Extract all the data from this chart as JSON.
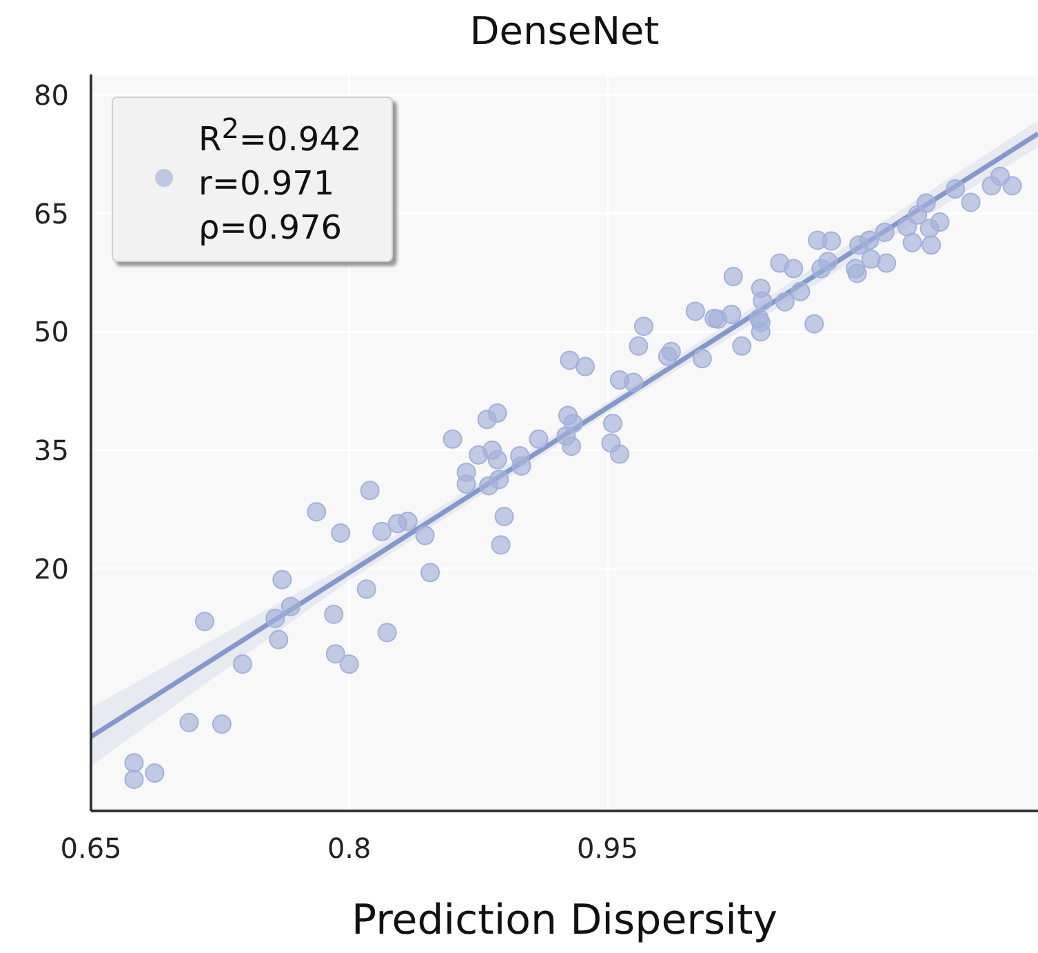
{
  "chart_data": {
    "type": "scatter",
    "title": "DenseNet",
    "xlabel": "Prediction Dispersity",
    "xlim": [
      0.65,
      1.2
    ],
    "xticks": [
      0.65,
      0.8,
      0.95
    ],
    "ylim": [
      -10.7,
      82.6
    ],
    "yticks": [
      20,
      35,
      50,
      65,
      80
    ],
    "grid": true,
    "legend": "top left",
    "series": [
      {
        "name": "R$^{2}$=0.942\nr=0.971\nρ=0.976",
        "marker": "circle",
        "color": "#a3b1d9",
        "x": [
          0.675,
          0.675,
          0.687,
          0.707,
          0.726,
          0.716,
          0.738,
          0.757,
          0.759,
          0.761,
          0.766,
          0.781,
          0.795,
          0.791,
          0.792,
          0.8,
          0.81,
          0.812,
          0.819,
          0.822,
          0.828,
          0.834,
          0.844,
          0.847,
          0.86,
          0.868,
          0.868,
          0.875,
          0.88,
          0.886,
          0.883,
          0.886,
          0.881,
          0.887,
          0.89,
          0.888,
          0.899,
          0.9,
          0.91,
          0.927,
          0.926,
          0.93,
          0.929,
          0.928,
          0.937,
          0.953,
          0.952,
          0.957,
          0.957,
          0.965,
          0.968,
          0.971,
          0.985,
          0.987,
          1.005,
          1.001,
          1.012,
          1.014,
          1.022,
          1.028,
          1.023,
          1.039,
          1.04,
          1.038,
          1.039,
          1.039,
          1.053,
          1.062,
          1.05,
          1.058,
          1.07,
          1.072,
          1.08,
          1.074,
          1.078,
          1.094,
          1.095,
          1.096,
          1.102,
          1.103,
          1.112,
          1.111,
          1.124,
          1.127,
          1.13,
          1.135,
          1.137,
          1.138,
          1.143,
          1.152,
          1.161,
          1.173,
          1.178,
          1.185
        ],
        "values": [
          -4.6,
          -6.7,
          -5.9,
          0.5,
          0.3,
          13.3,
          7.9,
          13.7,
          11.0,
          18.6,
          15.2,
          27.2,
          24.5,
          14.2,
          9.2,
          7.9,
          17.4,
          29.9,
          24.7,
          11.9,
          25.7,
          26.0,
          24.2,
          19.5,
          36.4,
          32.2,
          30.7,
          34.4,
          38.9,
          39.7,
          35.0,
          33.8,
          30.5,
          31.3,
          26.6,
          23.0,
          34.3,
          33.0,
          36.4,
          39.4,
          36.8,
          38.4,
          35.5,
          46.4,
          45.6,
          38.4,
          35.9,
          34.5,
          43.9,
          43.6,
          48.2,
          50.7,
          46.9,
          47.5,
          46.6,
          52.6,
          51.7,
          51.6,
          52.2,
          48.2,
          57.0,
          55.5,
          53.9,
          51.7,
          51.2,
          50.0,
          53.8,
          55.1,
          58.7,
          58.0,
          51.0,
          61.6,
          61.5,
          58.0,
          58.9,
          58.0,
          57.4,
          61.0,
          61.6,
          59.2,
          58.7,
          62.6,
          63.3,
          61.3,
          64.8,
          66.3,
          63.1,
          61.0,
          63.9,
          68.1,
          66.4,
          68.5,
          69.7,
          68.5
        ]
      },
      {
        "type": "line",
        "color": "#8598cc",
        "line_style": "solid",
        "x": [
          0.65,
          0.8,
          0.95,
          1.2
        ],
        "values": [
          -1.3,
          19.5,
          40.4,
          75.1
        ],
        "lower": [
          -5.0,
          18.5,
          39.7,
          73.4
        ],
        "upper": [
          2.4,
          20.6,
          41.1,
          76.8
        ]
      }
    ]
  }
}
